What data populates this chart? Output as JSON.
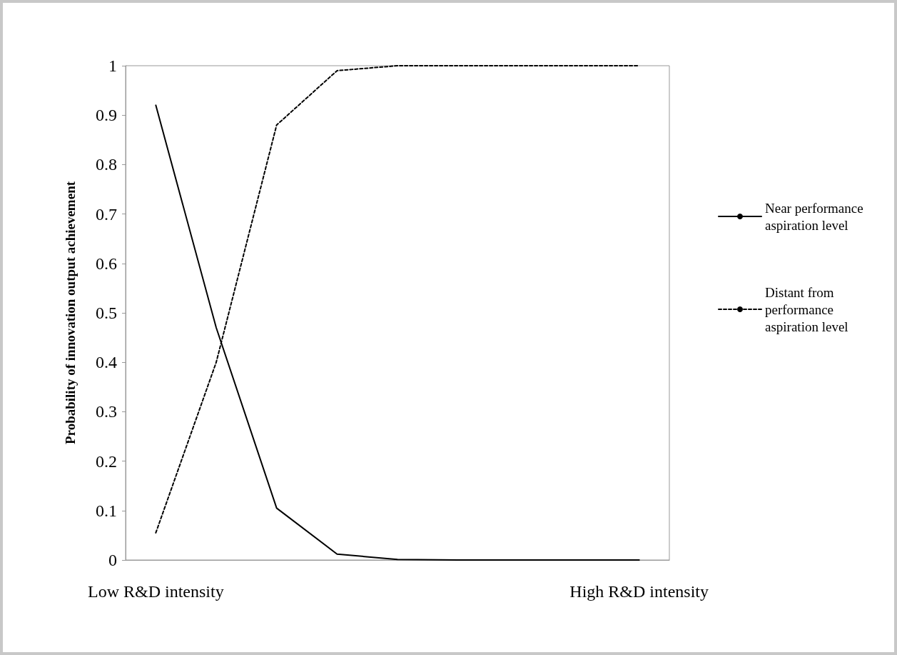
{
  "chart_data": {
    "type": "line",
    "ylabel": "Probability of innovation output achievement",
    "categories": [
      "Low R&D intensity",
      null,
      null,
      null,
      null,
      null,
      null,
      null,
      "High R&D intensity"
    ],
    "ylim": [
      0,
      1
    ],
    "yticks": [
      0,
      0.1,
      0.2,
      0.3,
      0.4,
      0.5,
      0.6,
      0.7,
      0.8,
      0.9,
      1
    ],
    "grid": false,
    "legend": "right",
    "marker": "none",
    "series": [
      {
        "name": "Near performance aspiration level",
        "color": "#000000",
        "line_style": "solid",
        "values": [
          0.92,
          0.47,
          0.105,
          0.012,
          0.001,
          0,
          0,
          0,
          0
        ]
      },
      {
        "name": "Distant from performance aspiration level",
        "color": "#000000",
        "line_style": "dashed",
        "values": [
          0.055,
          0.4,
          0.88,
          0.99,
          1,
          1,
          1,
          1,
          1
        ]
      }
    ]
  }
}
